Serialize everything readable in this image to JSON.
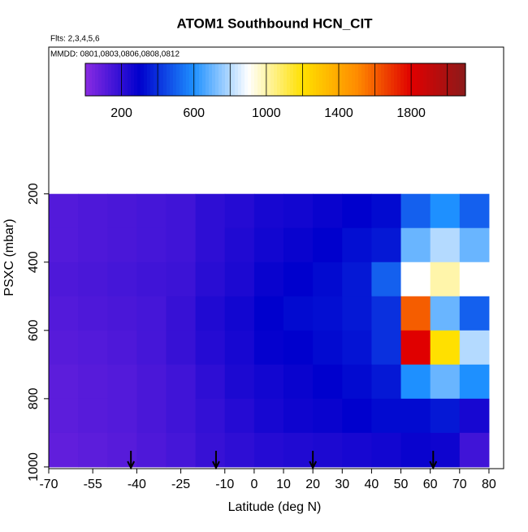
{
  "chart_data": {
    "type": "heatmap",
    "title": "ATOM1 Southbound HCN_CIT",
    "subtitle": "Flts: 2,3,4,5,6",
    "annotation": "MMDD: 0801,0803,0806,0808,0812",
    "xlabel": "Latitude (deg N)",
    "ylabel": "PSXC (mbar)",
    "xlim": [
      -70,
      85
    ],
    "ylim": [
      1005,
      -230
    ],
    "xticks": [
      -70,
      -55,
      -40,
      -25,
      -10,
      0,
      10,
      20,
      30,
      40,
      50,
      60,
      70,
      80
    ],
    "yticks": [
      200,
      400,
      600,
      800,
      1000
    ],
    "x_bins": [
      -70,
      -60,
      -50,
      -40,
      -30,
      -20,
      -10,
      0,
      10,
      20,
      30,
      40,
      50,
      60,
      70,
      80
    ],
    "y_bins": [
      200,
      300,
      400,
      500,
      600,
      700,
      800,
      900,
      1000
    ],
    "z": [
      [
        120,
        130,
        140,
        150,
        160,
        200,
        220,
        250,
        260,
        280,
        300,
        320,
        500,
        600,
        500
      ],
      [
        120,
        130,
        140,
        150,
        160,
        200,
        230,
        260,
        280,
        300,
        330,
        350,
        700,
        800,
        700
      ],
      [
        130,
        140,
        150,
        160,
        170,
        210,
        240,
        280,
        300,
        320,
        350,
        500,
        900,
        1000,
        900
      ],
      [
        120,
        130,
        140,
        150,
        180,
        230,
        260,
        300,
        320,
        330,
        350,
        400,
        1600,
        700,
        500
      ],
      [
        110,
        120,
        130,
        150,
        180,
        220,
        250,
        290,
        300,
        320,
        340,
        400,
        1800,
        1200,
        800
      ],
      [
        100,
        110,
        120,
        140,
        160,
        200,
        240,
        260,
        280,
        300,
        320,
        350,
        600,
        700,
        600
      ],
      [
        100,
        110,
        120,
        140,
        160,
        190,
        220,
        250,
        270,
        280,
        300,
        320,
        320,
        350,
        250
      ],
      [
        90,
        100,
        110,
        130,
        150,
        180,
        200,
        220,
        230,
        240,
        250,
        260,
        280,
        270,
        160
      ]
    ],
    "clim": [
      0,
      2100
    ],
    "colorbar_ticks": [
      200,
      600,
      1000,
      1400,
      1800
    ],
    "colorbar_lines": [
      200,
      400,
      600,
      800,
      1000,
      1200,
      1400,
      1600,
      1800,
      2000
    ],
    "colorscale": [
      "#8a2be2",
      "#0000cd",
      "#1e90ff",
      "#ffffff",
      "#ffe000",
      "#ff8c00",
      "#e00000",
      "#8b1a1a"
    ],
    "arrows_x": [
      -42,
      -13,
      20,
      61
    ]
  }
}
